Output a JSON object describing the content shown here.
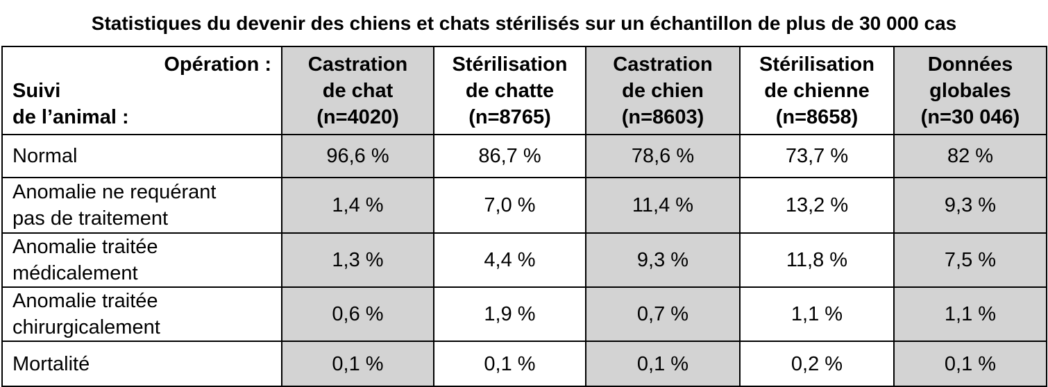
{
  "title": "Statistiques du devenir des chiens et chats stérilisés sur un échantillon de plus de 30 000 cas",
  "table": {
    "corner_top": "Opération :",
    "corner_bottom": [
      "Suivi",
      "de l’animal :"
    ],
    "columns": [
      [
        "Castration",
        "de chat",
        "(n=4020)"
      ],
      [
        "Stérilisation",
        "de chatte",
        "(n=8765)"
      ],
      [
        "Castration",
        "de chien",
        "(n=8603)"
      ],
      [
        "Stérilisation",
        "de chienne",
        "(n=8658)"
      ],
      [
        "Données",
        "globales",
        "(n=30 046)"
      ]
    ],
    "rows": [
      {
        "label": [
          "Normal"
        ],
        "cells": [
          "96,6 %",
          "86,7 %",
          "78,6 %",
          "73,7 %",
          "82 %"
        ]
      },
      {
        "label": [
          "Anomalie ne requérant",
          "pas de traitement"
        ],
        "cells": [
          "1,4 %",
          "7,0 %",
          "11,4 %",
          "13,2 %",
          "9,3 %"
        ]
      },
      {
        "label": [
          "Anomalie traitée",
          "médicalement"
        ],
        "cells": [
          "1,3 %",
          "4,4 %",
          "9,3 %",
          "11,8 %",
          "7,5 %"
        ]
      },
      {
        "label": [
          "Anomalie traitée",
          "chirurgicalement"
        ],
        "cells": [
          "0,6 %",
          "1,9 %",
          "0,7 %",
          "1,1 %",
          "1,1 %"
        ]
      },
      {
        "label": [
          "Mortalité"
        ],
        "cells": [
          "0,1 %",
          "0,1 %",
          "0,1 %",
          "0,2 %",
          "0,1 %"
        ]
      }
    ]
  }
}
